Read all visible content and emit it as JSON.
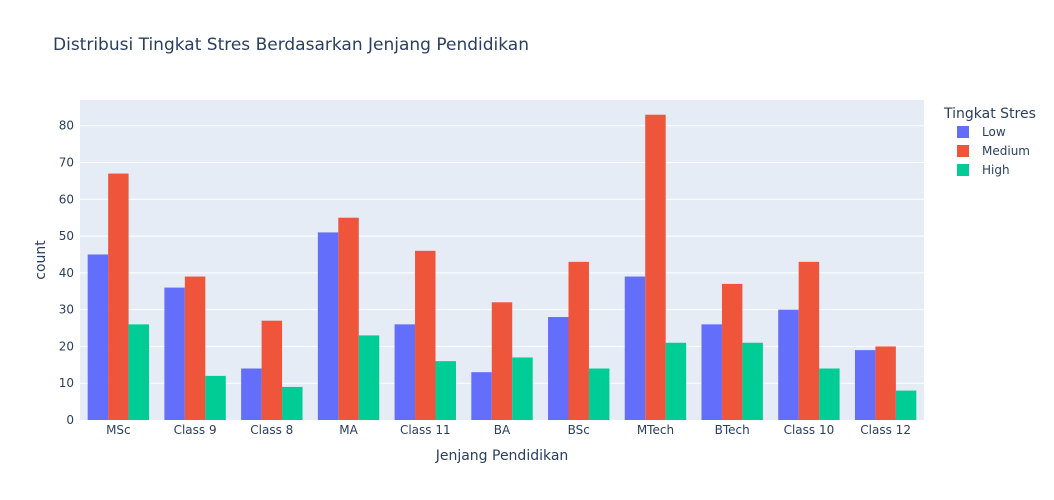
{
  "chart_data": {
    "type": "bar",
    "title": "Distribusi Tingkat Stres Berdasarkan Jenjang Pendidikan",
    "xlabel": "Jenjang Pendidikan",
    "ylabel": "count",
    "ylim": [
      0,
      87
    ],
    "yticks": [
      0,
      10,
      20,
      30,
      40,
      50,
      60,
      70,
      80
    ],
    "grid": true,
    "legend_position": "top-right",
    "legend_title": "Tingkat Stres",
    "categories": [
      "MSc",
      "Class 9",
      "Class 8",
      "MA",
      "Class 11",
      "BA",
      "BSc",
      "MTech",
      "BTech",
      "Class 10",
      "Class 12"
    ],
    "series": [
      {
        "name": "Low",
        "color": "#636efa",
        "values": [
          45,
          36,
          14,
          51,
          26,
          13,
          28,
          39,
          26,
          30,
          19
        ]
      },
      {
        "name": "Medium",
        "color": "#ef553b",
        "values": [
          67,
          39,
          27,
          55,
          46,
          32,
          43,
          83,
          37,
          43,
          20
        ]
      },
      {
        "name": "High",
        "color": "#00cc96",
        "values": [
          26,
          12,
          9,
          23,
          16,
          17,
          14,
          21,
          21,
          14,
          8
        ]
      }
    ],
    "plot_background": "#e5ecf6",
    "grid_color": "#ffffff",
    "text_color": "#2a3f5f"
  }
}
